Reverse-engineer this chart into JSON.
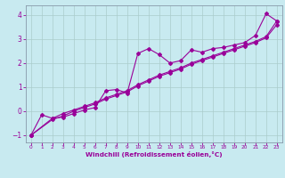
{
  "title": "",
  "xlabel": "Windchill (Refroidissement éolien,°C)",
  "ylabel": "",
  "bg_color": "#c8eaf0",
  "line_color": "#990099",
  "grid_color": "#aacccc",
  "xlim": [
    -0.5,
    23.5
  ],
  "ylim": [
    -1.3,
    4.4
  ],
  "yticks": [
    -1,
    0,
    1,
    2,
    3,
    4
  ],
  "xticks": [
    0,
    1,
    2,
    3,
    4,
    5,
    6,
    7,
    8,
    9,
    10,
    11,
    12,
    13,
    14,
    15,
    16,
    17,
    18,
    19,
    20,
    21,
    22,
    23
  ],
  "series1_x": [
    0,
    1,
    2,
    3,
    4,
    5,
    6,
    7,
    8,
    9,
    10,
    11,
    12,
    13,
    14,
    15,
    16,
    17,
    18,
    19,
    20,
    21,
    22,
    23
  ],
  "series1_y": [
    -1.0,
    -0.15,
    -0.3,
    -0.25,
    -0.1,
    0.05,
    0.15,
    0.85,
    0.9,
    0.75,
    2.4,
    2.6,
    2.35,
    2.0,
    2.1,
    2.55,
    2.45,
    2.6,
    2.65,
    2.75,
    2.85,
    3.15,
    4.05,
    3.75
  ],
  "series2_x": [
    0,
    2,
    3,
    4,
    5,
    6,
    7,
    8,
    9,
    10,
    11,
    12,
    13,
    14,
    15,
    16,
    17,
    18,
    19,
    20,
    21,
    22,
    23
  ],
  "series2_y": [
    -1.0,
    -0.3,
    -0.1,
    0.05,
    0.2,
    0.35,
    0.55,
    0.7,
    0.85,
    1.1,
    1.3,
    1.5,
    1.65,
    1.8,
    2.0,
    2.15,
    2.3,
    2.45,
    2.6,
    2.75,
    2.9,
    3.1,
    3.75
  ],
  "series3_x": [
    0,
    2,
    3,
    4,
    5,
    6,
    7,
    8,
    9,
    10,
    11,
    12,
    13,
    14,
    15,
    16,
    17,
    18,
    19,
    20,
    21,
    22,
    23
  ],
  "series3_y": [
    -1.0,
    -0.35,
    -0.2,
    0.0,
    0.15,
    0.3,
    0.5,
    0.65,
    0.8,
    1.05,
    1.25,
    1.45,
    1.6,
    1.75,
    1.95,
    2.1,
    2.25,
    2.4,
    2.55,
    2.7,
    2.85,
    3.05,
    3.6
  ]
}
